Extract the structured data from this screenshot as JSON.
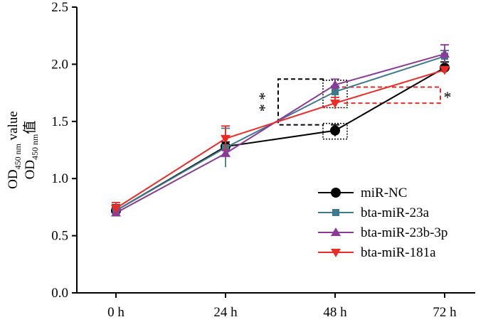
{
  "chart_data": {
    "type": "line",
    "title": "",
    "xlabel": "",
    "ylabel": {
      "line1": {
        "base": "OD",
        "sub": "450 nm",
        "rest": "值"
      },
      "line2": {
        "base": "OD",
        "sub": "450 nm",
        "rest": " value"
      }
    },
    "categories": [
      "0 h",
      "24 h",
      "48 h",
      "72 h"
    ],
    "ylim": [
      0.0,
      2.5
    ],
    "yticks": [
      "0.0",
      "0.5",
      "1.0",
      "1.5",
      "2.0",
      "2.5"
    ],
    "series": [
      {
        "name": "miR-NC",
        "color": "#000000",
        "marker": "circle",
        "values": [
          0.72,
          1.28,
          1.42,
          1.97
        ],
        "errors": [
          0.05,
          0.04,
          0.05,
          0.05
        ]
      },
      {
        "name": "bta-miR-23a",
        "color": "#3d7a8c",
        "marker": "square",
        "values": [
          0.72,
          1.27,
          1.76,
          2.07
        ],
        "errors": [
          0.03,
          0.17,
          0.05,
          0.05
        ]
      },
      {
        "name": "bta-miR-23b-3p",
        "color": "#8b3a9a",
        "marker": "triangle-up",
        "values": [
          0.7,
          1.22,
          1.82,
          2.09
        ],
        "errors": [
          0.03,
          0.03,
          0.05,
          0.08
        ]
      },
      {
        "name": "bta-miR-181a",
        "color": "#ee2a24",
        "marker": "triangle-down",
        "values": [
          0.74,
          1.35,
          1.66,
          1.95
        ],
        "errors": [
          0.05,
          0.11,
          0.05,
          0.03
        ]
      }
    ],
    "annotations": [
      {
        "label": "* *",
        "color": "#000000",
        "style": "dashed bracket",
        "between": [
          "miR-NC",
          "bta-miR-23b-3p"
        ],
        "category": "48 h",
        "y_range": [
          1.47,
          1.87
        ]
      },
      {
        "label": "*",
        "color": "#ee2a24",
        "style": "dashed bracket",
        "between": [
          "bta-miR-181a",
          "miR-NC"
        ],
        "category": "48 h",
        "y_range": [
          1.66,
          1.8
        ]
      }
    ],
    "legend_position": "bottom-right",
    "grid": false
  }
}
